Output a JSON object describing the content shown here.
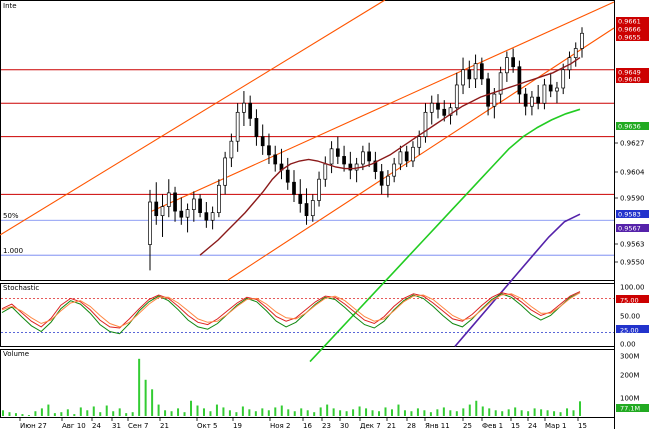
{
  "window": {
    "title": "Inte"
  },
  "panes": {
    "price": {
      "title": "Inte"
    },
    "stochastic": {
      "title": "Stochastic"
    },
    "volume": {
      "title": "Volume"
    }
  },
  "colors": {
    "background": "#ffffff",
    "candle_body": "#000000",
    "horizontal_line_red": "#cc0000",
    "channel_orange": "#ff5500",
    "ma_dark_red": "#8b1a1a",
    "ma_green": "#22cc22",
    "ma_purple": "#5522aa",
    "stoch_red": "#dd2222",
    "stoch_green": "#118811",
    "stoch_orange": "#ff8844",
    "volume_bar": "#33cc33",
    "guide_blue": "#6b7ff0",
    "tag_red": "#cc0000",
    "tag_green": "#22aa22",
    "tag_purple": "#5522aa",
    "tag_blue": "#2233cc"
  },
  "chart_data": [
    {
      "type": "candlestick",
      "pane": "price",
      "title": "Inte",
      "x_tick_labels": [
        "Июн 27",
        "Авг 10",
        "24",
        "31",
        "Сен 7",
        "21",
        "Окт 5",
        "19",
        "Ноя 2",
        "16",
        "23",
        "30",
        "Дек 7",
        "21",
        "28",
        "Янв 11",
        "25",
        "Фев 1",
        "15",
        "24",
        "Мар 1",
        "15"
      ],
      "y_axis_labels": [
        "0.9627",
        "0.9604",
        "0.9590",
        "0.9563",
        "0.9550"
      ],
      "left_edge_labels": [
        "50%",
        "1.000"
      ],
      "price_tags": [
        {
          "label": "0.9661",
          "color": "red"
        },
        {
          "label": "0.9666",
          "color": "red"
        },
        {
          "label": "0.9655",
          "color": "red"
        },
        {
          "label": "0.9649",
          "color": "red"
        },
        {
          "label": "0.9640",
          "color": "red"
        },
        {
          "label": "0.9636",
          "color": "green"
        },
        {
          "label": "0.9583",
          "color": "blue"
        },
        {
          "label": "0.9567",
          "color": "purple"
        }
      ],
      "ohlc": [
        [
          0.9547,
          0.9583,
          0.953,
          0.9575
        ],
        [
          0.9575,
          0.9588,
          0.956,
          0.9566
        ],
        [
          0.9566,
          0.958,
          0.9552,
          0.9572
        ],
        [
          0.9572,
          0.959,
          0.9565,
          0.9581
        ],
        [
          0.9581,
          0.9585,
          0.9562,
          0.9569
        ],
        [
          0.9569,
          0.9578,
          0.956,
          0.9565
        ],
        [
          0.9565,
          0.9574,
          0.9555,
          0.957
        ],
        [
          0.957,
          0.9582,
          0.9562,
          0.9577
        ],
        [
          0.9577,
          0.958,
          0.9565,
          0.9568
        ],
        [
          0.9568,
          0.9575,
          0.9558,
          0.9563
        ],
        [
          0.9563,
          0.9572,
          0.9557,
          0.9568
        ],
        [
          0.9568,
          0.959,
          0.9565,
          0.9586
        ],
        [
          0.9586,
          0.9608,
          0.958,
          0.9604
        ],
        [
          0.9604,
          0.962,
          0.9598,
          0.9615
        ],
        [
          0.9615,
          0.964,
          0.9608,
          0.9634
        ],
        [
          0.9634,
          0.9648,
          0.9625,
          0.964
        ],
        [
          0.964,
          0.9645,
          0.9625,
          0.963
        ],
        [
          0.963,
          0.9636,
          0.9612,
          0.9618
        ],
        [
          0.9618,
          0.9626,
          0.9606,
          0.9612
        ],
        [
          0.9612,
          0.962,
          0.96,
          0.9606
        ],
        [
          0.9606,
          0.9612,
          0.9595,
          0.96
        ],
        [
          0.96,
          0.961,
          0.959,
          0.9596
        ],
        [
          0.9596,
          0.9604,
          0.9583,
          0.9588
        ],
        [
          0.9588,
          0.9596,
          0.9575,
          0.958
        ],
        [
          0.958,
          0.959,
          0.9568,
          0.9574
        ],
        [
          0.9574,
          0.9584,
          0.956,
          0.9566
        ],
        [
          0.9566,
          0.958,
          0.9562,
          0.9576
        ],
        [
          0.9576,
          0.9595,
          0.9572,
          0.959
        ],
        [
          0.959,
          0.9605,
          0.9585,
          0.96
        ],
        [
          0.96,
          0.9615,
          0.9594,
          0.961
        ],
        [
          0.961,
          0.9618,
          0.96,
          0.9605
        ],
        [
          0.9605,
          0.9612,
          0.9595,
          0.96
        ],
        [
          0.96,
          0.9608,
          0.959,
          0.9596
        ],
        [
          0.9596,
          0.9604,
          0.9588,
          0.96
        ],
        [
          0.96,
          0.9612,
          0.9596,
          0.9608
        ],
        [
          0.9608,
          0.9614,
          0.9598,
          0.9602
        ],
        [
          0.9602,
          0.9608,
          0.959,
          0.9595
        ],
        [
          0.9595,
          0.96,
          0.958,
          0.9586
        ],
        [
          0.9586,
          0.9596,
          0.9578,
          0.9592
        ],
        [
          0.9592,
          0.9604,
          0.9588,
          0.96
        ],
        [
          0.96,
          0.9612,
          0.9596,
          0.9608
        ],
        [
          0.9608,
          0.9612,
          0.9598,
          0.9602
        ],
        [
          0.9602,
          0.9615,
          0.9598,
          0.9611
        ],
        [
          0.9611,
          0.9622,
          0.9606,
          0.9618
        ],
        [
          0.9618,
          0.964,
          0.9614,
          0.9634
        ],
        [
          0.9634,
          0.9645,
          0.9626,
          0.964
        ],
        [
          0.964,
          0.9646,
          0.963,
          0.9636
        ],
        [
          0.9636,
          0.9642,
          0.9628,
          0.9632
        ],
        [
          0.9632,
          0.964,
          0.9626,
          0.9637
        ],
        [
          0.9637,
          0.966,
          0.9632,
          0.9652
        ],
        [
          0.9652,
          0.967,
          0.9646,
          0.9662
        ],
        [
          0.9662,
          0.9668,
          0.965,
          0.9656
        ],
        [
          0.9656,
          0.9672,
          0.965,
          0.9666
        ],
        [
          0.9666,
          0.967,
          0.9652,
          0.9656
        ],
        [
          0.9656,
          0.966,
          0.9632,
          0.9638
        ],
        [
          0.9638,
          0.965,
          0.963,
          0.9646
        ],
        [
          0.9646,
          0.9664,
          0.964,
          0.966
        ],
        [
          0.966,
          0.9674,
          0.9654,
          0.967
        ],
        [
          0.967,
          0.9676,
          0.966,
          0.9664
        ],
        [
          0.9664,
          0.9668,
          0.964,
          0.9646
        ],
        [
          0.9646,
          0.965,
          0.9632,
          0.9638
        ],
        [
          0.9638,
          0.9648,
          0.9632,
          0.9644
        ],
        [
          0.9644,
          0.9652,
          0.9636,
          0.964
        ],
        [
          0.964,
          0.9656,
          0.9636,
          0.9652
        ],
        [
          0.9652,
          0.966,
          0.9644,
          0.9648
        ],
        [
          0.9648,
          0.9654,
          0.964,
          0.965
        ],
        [
          0.965,
          0.9666,
          0.9646,
          0.9662
        ],
        [
          0.9662,
          0.9674,
          0.9656,
          0.967
        ],
        [
          0.967,
          0.968,
          0.9664,
          0.9676
        ],
        [
          0.9676,
          0.969,
          0.967,
          0.9686
        ]
      ],
      "overlays": [
        {
          "name": "",
          "color": "#8b1a1a",
          "values": [
            0.954,
            0.9545,
            0.955,
            0.9556,
            0.9562,
            0.9568,
            0.9575,
            0.9582,
            0.959,
            0.9596,
            0.96,
            0.9602,
            0.9603,
            0.9602,
            0.96,
            0.9598,
            0.9597,
            0.9597,
            0.9598,
            0.96,
            0.9603,
            0.9606,
            0.961,
            0.9614,
            0.9618,
            0.9622,
            0.9626,
            0.963,
            0.9634,
            0.9638,
            0.9641,
            0.9644,
            0.9646,
            0.9648,
            0.965,
            0.9652,
            0.9654,
            0.9656,
            0.9658,
            0.966,
            0.9663,
            0.9666,
            0.967
          ]
        },
        {
          "name": "",
          "color": "#22cc22",
          "values": [
            0.947,
            0.948,
            0.949,
            0.95,
            0.951,
            0.952,
            0.953,
            0.954,
            0.955,
            0.956,
            0.957,
            0.958,
            0.959,
            0.96,
            0.961,
            0.9618,
            0.9624,
            0.9629,
            0.9633,
            0.9636
          ]
        },
        {
          "name": "",
          "color": "#5522aa",
          "values": [
            0.948,
            0.9492,
            0.9504,
            0.9516,
            0.9528,
            0.954,
            0.9552,
            0.9562,
            0.9567
          ]
        }
      ],
      "horizontal_lines": [
        0.9662,
        0.964,
        0.9618,
        0.958
      ],
      "blue_guides": [
        0.9563,
        0.954
      ]
    },
    {
      "type": "line",
      "pane": "stochastic",
      "title": "Stochastic",
      "y_axis_labels": [
        "100.00",
        "75.00",
        "50.00",
        "25.00",
        "0.00"
      ],
      "ylim": [
        0,
        100
      ],
      "levels": [
        80,
        20
      ],
      "series": [
        {
          "name": "",
          "color": "#dd2222",
          "values": [
            62,
            70,
            55,
            40,
            30,
            45,
            68,
            80,
            74,
            60,
            42,
            30,
            28,
            44,
            62,
            78,
            86,
            80,
            66,
            50,
            38,
            34,
            44,
            58,
            72,
            82,
            78,
            64,
            48,
            40,
            46,
            60,
            74,
            84,
            82,
            70,
            56,
            42,
            36,
            48,
            66,
            80,
            88,
            84,
            72,
            58,
            44,
            40,
            52,
            68,
            82,
            90,
            86,
            74,
            60,
            50,
            56,
            70,
            84,
            92
          ]
        },
        {
          "name": "",
          "color": "#118811",
          "values": [
            55,
            65,
            48,
            32,
            22,
            38,
            62,
            76,
            70,
            54,
            34,
            22,
            18,
            36,
            58,
            74,
            84,
            76,
            60,
            42,
            30,
            26,
            36,
            52,
            68,
            80,
            74,
            58,
            40,
            30,
            38,
            54,
            70,
            82,
            78,
            64,
            48,
            34,
            28,
            40,
            60,
            76,
            86,
            80,
            66,
            50,
            36,
            30,
            44,
            62,
            78,
            88,
            82,
            68,
            52,
            42,
            50,
            66,
            82,
            90
          ]
        },
        {
          "name": "",
          "color": "#ff8844",
          "values": [
            60,
            66,
            58,
            46,
            36,
            42,
            58,
            72,
            76,
            66,
            50,
            36,
            30,
            38,
            54,
            70,
            82,
            82,
            72,
            58,
            44,
            38,
            40,
            52,
            66,
            78,
            80,
            70,
            56,
            46,
            44,
            54,
            68,
            80,
            84,
            76,
            62,
            48,
            40,
            44,
            58,
            74,
            84,
            86,
            78,
            64,
            50,
            42,
            46,
            60,
            76,
            86,
            88,
            80,
            66,
            54,
            54,
            66,
            80,
            90
          ]
        }
      ]
    },
    {
      "type": "bar",
      "pane": "volume",
      "title": "Volume",
      "y_axis_labels": [
        "300M",
        "200M",
        "100M"
      ],
      "bottom_tag": "77.1M",
      "values": [
        30,
        20,
        15,
        10,
        5,
        25,
        40,
        60,
        15,
        20,
        35,
        10,
        45,
        30,
        50,
        20,
        55,
        25,
        40,
        15,
        20,
        300,
        190,
        140,
        60,
        30,
        25,
        40,
        20,
        80,
        55,
        40,
        25,
        60,
        45,
        30,
        20,
        50,
        35,
        25,
        40,
        30,
        45,
        55,
        35,
        25,
        40,
        30,
        20,
        45,
        60,
        40,
        30,
        25,
        35,
        50,
        40,
        30,
        25,
        45,
        35,
        60,
        30,
        25,
        40,
        30,
        20,
        35,
        45,
        30,
        25,
        40,
        60,
        80,
        50,
        40,
        30,
        25,
        35,
        45,
        30,
        25,
        40,
        35,
        30,
        25,
        20,
        40,
        30,
        77
      ]
    }
  ]
}
